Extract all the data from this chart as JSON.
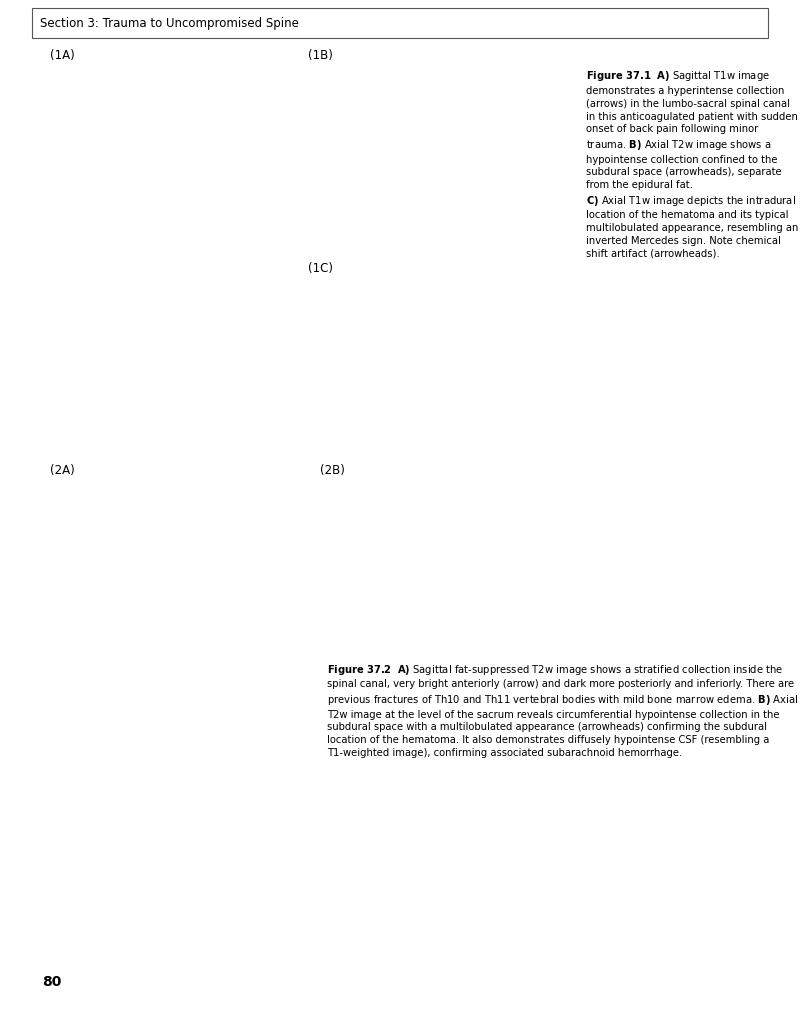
{
  "background_color": "#ffffff",
  "page_number": "80",
  "header_text": "Section 3: Trauma to Uncompromised Spine",
  "header_fontsize": 8.5,
  "page_num_fontsize": 10,
  "label_1A": "(1A)",
  "label_1B": "(1B)",
  "label_1C": "(1C)",
  "label_2A": "(2A)",
  "label_2B": "(2B)",
  "fig1_caption_figure": "Figure 37.1",
  "fig1_caption_A_bold": "A)",
  "fig1_caption_A_text": " Sagittal T1w image demonstrates a hyperintense collection (arrows) in the lumbo-sacral spinal canal in this anticoagulated patient with sudden onset of back pain following minor trauma.",
  "fig1_caption_B_bold": "B)",
  "fig1_caption_B_text": " Axial T2w image shows a hypointense collection confined to the subdural space (arrowheads), separate from the epidural fat.",
  "fig1_caption_C_bold": "C)",
  "fig1_caption_C_text": " Axial T1w image depicts the intradural location of the hematoma and its typical multilobulated appearance, resembling an inverted Mercedes sign. Note chemical shift artifact (arrowheads).",
  "fig2_caption_figure": "Figure 37.2",
  "fig2_caption_A_bold": "A)",
  "fig2_caption_A_text": " Sagittal fat-suppressed T2w image shows a stratified collection inside the spinal canal, very bright anteriorly (arrow) and dark more posteriorly and inferiorly. There are previous fractures of Th10 and Th11 vertebral bodies with mild bone marrow edema.",
  "fig2_caption_B_bold": "B)",
  "fig2_caption_B_text": " Axial T2w image at the level of the sacrum reveals circumferential hypointense collection in the subdural space with a multilobulated appearance (arrowheads) confirming the subdural location of the hematoma. It also demonstrates diffusely hypointense CSF (resembling a T1-weighted image), confirming associated subarachnoid hemorrhage.",
  "mri_color": "#3a3a3a",
  "caption_fontsize": 7.2,
  "label_fontsize": 8.5
}
